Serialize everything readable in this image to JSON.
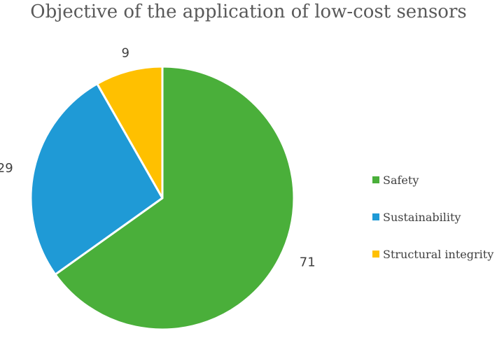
{
  "chart_data": {
    "type": "pie",
    "title": "Objective of the application of low-cost sensors",
    "categories": [
      "Safety",
      "Sustainability",
      "Structural integrity"
    ],
    "values": [
      71,
      29,
      9
    ],
    "colors": [
      "#4aaf3a",
      "#1f9ad6",
      "#ffc000"
    ],
    "legend_position": "right",
    "data_labels": [
      "71",
      "29",
      "9"
    ]
  }
}
